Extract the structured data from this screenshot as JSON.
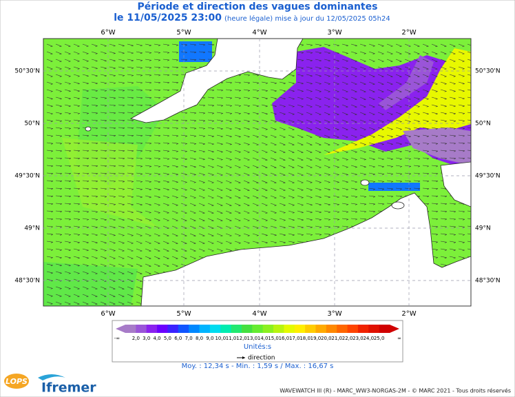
{
  "header": {
    "title": "Période et direction des vagues dominantes",
    "date": "le 11/05/2025 23:00",
    "update": "(heure légale) mise à jour du 12/05/2025 05h24"
  },
  "map": {
    "lon_labels": [
      "6°W",
      "5°W",
      "4°W",
      "3°W",
      "2°W"
    ],
    "lat_labels": [
      "50°30'N",
      "50°N",
      "49°30'N",
      "49°N",
      "48°30'N"
    ]
  },
  "legend": {
    "scale": [
      {
        "label": "-∞",
        "color": "#a77bc8"
      },
      {
        "label": "2,0",
        "color": "#9a55d8"
      },
      {
        "label": "3,0",
        "color": "#8a22ee"
      },
      {
        "label": "4,0",
        "color": "#6a00ff"
      },
      {
        "label": "5,0",
        "color": "#3a22ff"
      },
      {
        "label": "6,0",
        "color": "#1155ff"
      },
      {
        "label": "7,0",
        "color": "#0088ff"
      },
      {
        "label": "8,0",
        "color": "#00b4ff"
      },
      {
        "label": "9,0",
        "color": "#00dcf0"
      },
      {
        "label": "10,0",
        "color": "#00ecb0"
      },
      {
        "label": "11,0",
        "color": "#22e870"
      },
      {
        "label": "12,0",
        "color": "#44e040"
      },
      {
        "label": "13,0",
        "color": "#66ec30"
      },
      {
        "label": "14,0",
        "color": "#8cf020"
      },
      {
        "label": "15,0",
        "color": "#b8f410"
      },
      {
        "label": "16,0",
        "color": "#e4fa00"
      },
      {
        "label": "17,0",
        "color": "#ffee00"
      },
      {
        "label": "18,0",
        "color": "#ffcc00"
      },
      {
        "label": "19,0",
        "color": "#ffaa00"
      },
      {
        "label": "20,0",
        "color": "#ff8800"
      },
      {
        "label": "21,0",
        "color": "#ff6600"
      },
      {
        "label": "22,0",
        "color": "#ff4400"
      },
      {
        "label": "23,0",
        "color": "#f02200"
      },
      {
        "label": "24,0",
        "color": "#e01000"
      },
      {
        "label": "25,0",
        "color": "#d00000"
      },
      {
        "label": "∞",
        "color": "#d00000"
      }
    ],
    "units": "Unités:s",
    "direction": "direction",
    "stats": "Moy. : 12,34 s  -  Min. : 1,59 s / Max. : 16,67 s"
  },
  "logos": {
    "lops": "LOPS",
    "ifremer": "Ifremer"
  },
  "footer": "WAVEWATCH III (R) - MARC_WW3-NORGAS-2M - © MARC 2021 - Tous droits réservés"
}
